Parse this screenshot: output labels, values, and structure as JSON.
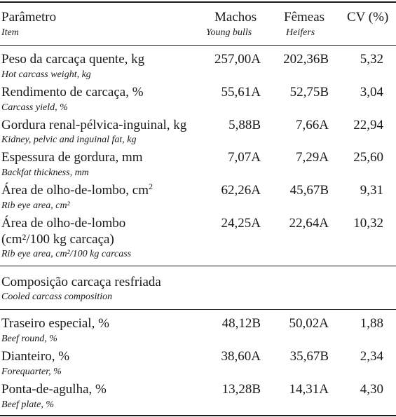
{
  "header": {
    "param": "Parâmetro",
    "param_en": "Item",
    "males": "Machos",
    "males_en": "Young bulls",
    "females": "Fêmeas",
    "females_en": "Heifers",
    "cv": "CV (%)"
  },
  "rows": [
    {
      "pt": "Peso da carcaça quente, kg",
      "en": "Hot carcass weight, kg",
      "m": "257,00A",
      "f": "202,36B",
      "cv": "5,32"
    },
    {
      "pt": "Rendimento de carcaça, %",
      "en": "Carcass yield, %",
      "m": "55,61A",
      "f": "52,75B",
      "cv": "3,04"
    },
    {
      "pt": "Gordura renal-pélvica-inguinal, kg",
      "en": "Kidney, pelvic and inguinal fat, kg",
      "m": "5,88B",
      "f": "7,66A",
      "cv": "22,94"
    },
    {
      "pt": "Espessura de gordura, mm",
      "en": "Backfat thickness, mm",
      "m": "7,07A",
      "f": "7,29A",
      "cv": "25,60"
    },
    {
      "pt": "Área de olho-de-lombo, cm",
      "pt_sup": "2",
      "en": "Rib eye area, cm²",
      "m": "62,26A",
      "f": "45,67B",
      "cv": "9,31"
    },
    {
      "pt": "Área de olho-de-lombo",
      "pt2": "(cm²/100 kg carcaça)",
      "en": "Rib eye area, cm²/100 kg carcass",
      "m": "24,25A",
      "f": "22,64A",
      "cv": "10,32"
    }
  ],
  "section": {
    "pt": "Composição carcaça resfriada",
    "en": "Cooled carcass composition"
  },
  "rows2": [
    {
      "pt": "Traseiro especial, %",
      "en": "Beef round, %",
      "m": "48,12B",
      "f": "50,02A",
      "cv": "1,88"
    },
    {
      "pt": "Dianteiro, %",
      "en": "Forequarter, %",
      "m": "38,60A",
      "f": "35,67B",
      "cv": "2,34"
    },
    {
      "pt": "Ponta-de-agulha, %",
      "en": "Beef plate, %",
      "m": "13,28B",
      "f": "14,31A",
      "cv": "4,30"
    }
  ]
}
